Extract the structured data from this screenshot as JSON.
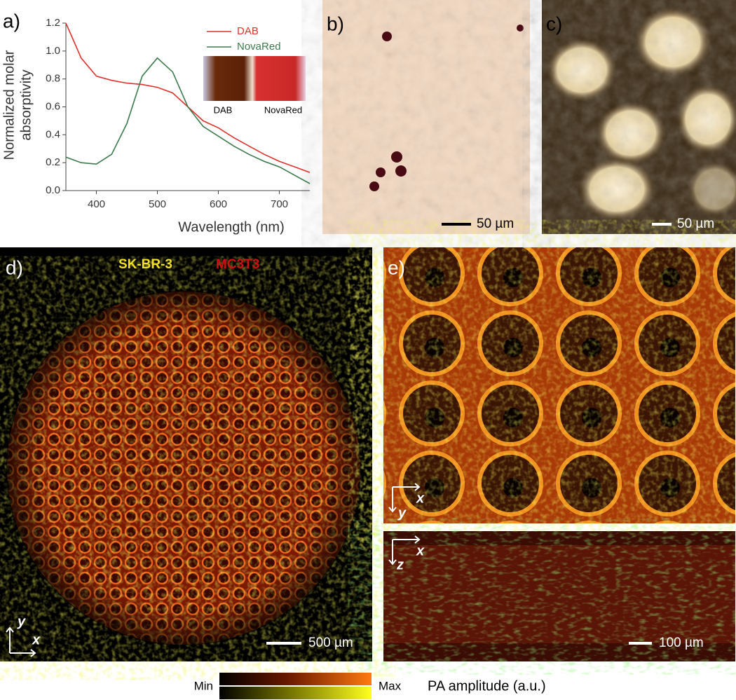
{
  "chart_data": {
    "type": "line",
    "x_label": "Wavelength (nm)",
    "y_label": [
      "Normalized molar",
      "absorptivity"
    ],
    "x": [
      350,
      375,
      400,
      425,
      450,
      475,
      500,
      525,
      550,
      575,
      600,
      625,
      650,
      675,
      700,
      725,
      750
    ],
    "series": [
      {
        "name": "DAB",
        "color": "#e0302c",
        "values": [
          1.2,
          0.95,
          0.82,
          0.79,
          0.77,
          0.76,
          0.74,
          0.7,
          0.6,
          0.5,
          0.45,
          0.38,
          0.32,
          0.26,
          0.21,
          0.17,
          0.13
        ]
      },
      {
        "name": "NovaRed",
        "color": "#3c7a4c",
        "values": [
          0.24,
          0.2,
          0.19,
          0.26,
          0.48,
          0.82,
          0.95,
          0.85,
          0.6,
          0.46,
          0.39,
          0.32,
          0.26,
          0.21,
          0.17,
          0.11,
          0.05
        ]
      }
    ],
    "xlim": [
      350,
      750
    ],
    "ylim": [
      0,
      1.2
    ],
    "xticks": [
      400,
      500,
      600,
      700
    ],
    "yticks": [
      {
        "value": 0,
        "label": "0.0"
      },
      0.2,
      0.4,
      0.6,
      0.8,
      {
        "value": 1,
        "label": "1.0"
      },
      1.2
    ],
    "grid": false,
    "legend": "upper right",
    "inset_labels": [
      "DAB",
      "NovaRed"
    ]
  },
  "panels": {
    "labels": [
      "a)",
      "b)",
      "c)",
      "d)",
      "e)"
    ],
    "scale_bars": [
      "50 µm",
      "50 µm",
      "500 µm",
      "100 µm"
    ],
    "stain_labels": [
      "SK-BR-3",
      "MC3T3"
    ],
    "axes_d": [
      "y",
      "x"
    ],
    "axes_e_top": [
      "x",
      "y"
    ],
    "axes_e_bottom": [
      "x",
      "z"
    ],
    "colorbar": {
      "min": "Min",
      "max": "Max",
      "title": "PA amplitude (a.u.)"
    }
  }
}
